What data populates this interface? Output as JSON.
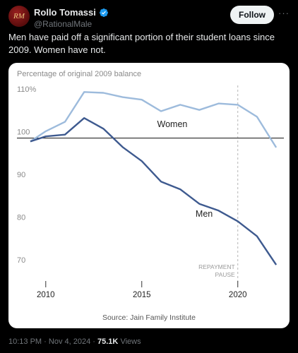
{
  "author": {
    "display_name": "Rollo Tomassi",
    "handle": "@RationalMale",
    "avatar_text": "RM",
    "verified": true
  },
  "follow_label": "Follow",
  "more_label": "···",
  "tweet_text": "Men have paid off a significant portion of their student loans since 2009. Women have not.",
  "meta": {
    "time": "10:13 PM",
    "date": "Nov 4, 2024",
    "views_count": "75.1K",
    "views_label": "Views"
  },
  "colors": {
    "women": "#9dbbdc",
    "men": "#3e5a8f",
    "accent": "#1d9bf0"
  },
  "chart_data": {
    "type": "line",
    "title": "Percentage of original 2009 balance",
    "source": "Source: Jain Family Institute",
    "xlim": [
      2008.5,
      2022.4
    ],
    "ylim": [
      68,
      113
    ],
    "x_ticks": [
      2010,
      2015,
      2020
    ],
    "y_ticks": [
      {
        "value": 110,
        "label": "110%"
      },
      {
        "value": 100,
        "label": "100"
      },
      {
        "value": 90,
        "label": "90"
      },
      {
        "value": 80,
        "label": "80"
      },
      {
        "value": 70,
        "label": "70"
      }
    ],
    "reference_line": 100,
    "annotation": {
      "x": 2020,
      "label_lines": [
        "REPAYMENT",
        "PAUSE"
      ]
    },
    "series": [
      {
        "name": "Women",
        "x": [
          2009.2,
          2010,
          2011,
          2012,
          2013,
          2014,
          2015,
          2016,
          2017,
          2018,
          2019,
          2020,
          2021,
          2022
        ],
        "values": [
          99.2,
          101.6,
          103.8,
          110.8,
          110.6,
          109.6,
          109.0,
          106.3,
          107.8,
          106.6,
          108.1,
          107.8,
          105.0,
          97.8
        ]
      },
      {
        "name": "Men",
        "x": [
          2009.2,
          2010,
          2011,
          2012,
          2013,
          2014,
          2015,
          2016,
          2017,
          2018,
          2019,
          2020,
          2021,
          2022
        ],
        "values": [
          99.2,
          100.4,
          100.8,
          104.7,
          102.2,
          97.9,
          94.6,
          89.8,
          88.0,
          84.6,
          83.0,
          80.5,
          77.0,
          70.3
        ]
      }
    ]
  }
}
